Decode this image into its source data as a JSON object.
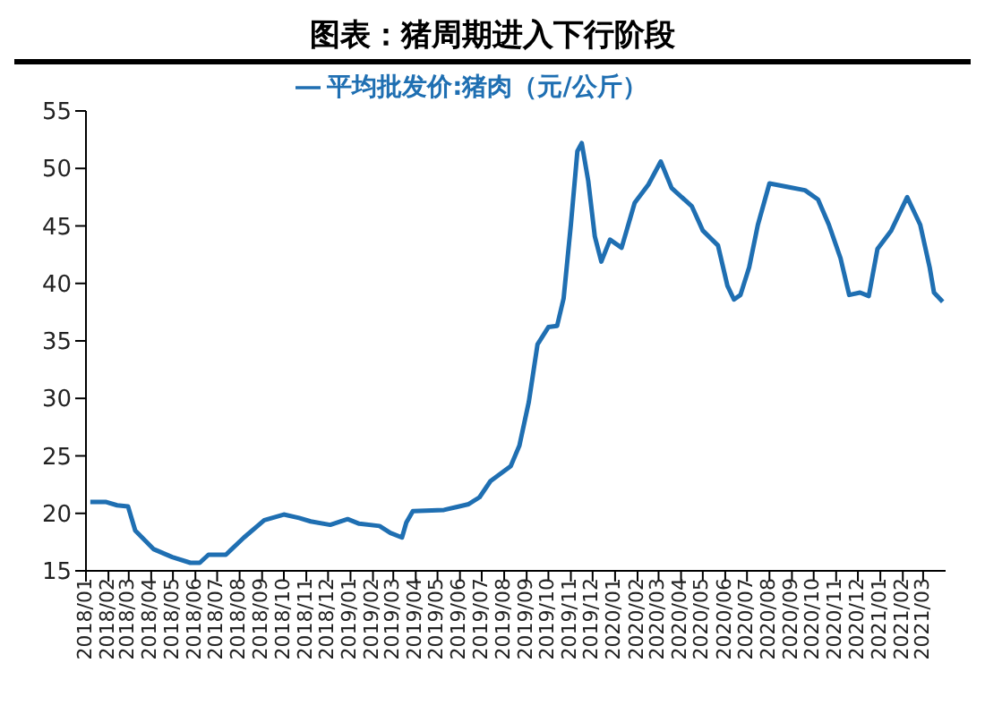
{
  "chart_data": {
    "type": "line",
    "title": "图表：猪周期进入下行阶段",
    "x": [
      "2018-01-07",
      "2018-01-28",
      "2018-02-13",
      "2018-02-28",
      "2018-03-10",
      "2018-04-04",
      "2018-04-30",
      "2018-05-25",
      "2018-06-07",
      "2018-06-19",
      "2018-07-13",
      "2018-08-07",
      "2018-09-04",
      "2018-10-01",
      "2018-10-22",
      "2018-11-07",
      "2018-12-04",
      "2018-12-28",
      "2019-01-13",
      "2019-02-10",
      "2019-02-25",
      "2019-03-13",
      "2019-03-19",
      "2019-03-28",
      "2019-05-10",
      "2019-06-13",
      "2019-06-28",
      "2019-07-13",
      "2019-08-10",
      "2019-08-22",
      "2019-09-04",
      "2019-09-16",
      "2019-10-01",
      "2019-10-13",
      "2019-10-22",
      "2019-11-01",
      "2019-11-10",
      "2019-11-16",
      "2019-11-25",
      "2019-12-04",
      "2019-12-13",
      "2019-12-25",
      "2020-01-10",
      "2020-01-28",
      "2020-02-16",
      "2020-03-04",
      "2020-03-19",
      "2020-04-16",
      "2020-05-01",
      "2020-05-22",
      "2020-06-04",
      "2020-06-13",
      "2020-06-22",
      "2020-07-04",
      "2020-07-16",
      "2020-08-01",
      "2020-08-25",
      "2020-09-19",
      "2020-10-07",
      "2020-10-22",
      "2020-11-07",
      "2020-11-19",
      "2020-12-04",
      "2020-12-16",
      "2020-12-28",
      "2021-01-16",
      "2021-02-07",
      "2021-02-25",
      "2021-03-10",
      "2021-03-16",
      "2021-03-28"
    ],
    "series": [
      {
        "name": "平均批发价:猪肉（元/公斤）",
        "color": "#1f6fb2",
        "values": [
          21.0,
          21.0,
          20.7,
          20.6,
          18.5,
          16.9,
          16.2,
          15.7,
          15.7,
          16.4,
          16.4,
          17.9,
          19.4,
          19.9,
          19.6,
          19.3,
          19.0,
          19.5,
          19.1,
          18.9,
          18.3,
          17.9,
          19.2,
          20.2,
          20.3,
          20.8,
          21.4,
          22.8,
          24.1,
          25.9,
          29.7,
          34.7,
          36.2,
          36.3,
          38.7,
          45.1,
          51.5,
          52.2,
          48.9,
          44.1,
          41.9,
          43.8,
          43.1,
          47.0,
          48.6,
          50.6,
          48.3,
          46.7,
          44.6,
          43.3,
          39.8,
          38.6,
          39.0,
          41.4,
          45.1,
          48.7,
          48.4,
          48.1,
          47.3,
          45.1,
          42.2,
          39.0,
          39.2,
          38.9,
          43.0,
          44.6,
          47.5,
          45.1,
          41.4,
          39.2,
          38.4
        ]
      }
    ],
    "xlim": [
      "2018-01-01",
      "2021-04-01"
    ],
    "xticks": [
      {
        "value": "2018-01",
        "label": "2018/01"
      },
      {
        "value": "2018-02",
        "label": "2018/02"
      },
      {
        "value": "2018-03",
        "label": "2018/03"
      },
      {
        "value": "2018-04",
        "label": "2018/04"
      },
      {
        "value": "2018-05",
        "label": "2018/05"
      },
      {
        "value": "2018-06",
        "label": "2018/06"
      },
      {
        "value": "2018-07",
        "label": "2018/07"
      },
      {
        "value": "2018-08",
        "label": "2018/08"
      },
      {
        "value": "2018-09",
        "label": "2018/09"
      },
      {
        "value": "2018-10",
        "label": "2018/10"
      },
      {
        "value": "2018-11",
        "label": "2018/11"
      },
      {
        "value": "2018-12",
        "label": "2018/12"
      },
      {
        "value": "2019-01",
        "label": "2019/01"
      },
      {
        "value": "2019-02",
        "label": "2019/02"
      },
      {
        "value": "2019-03",
        "label": "2019/03"
      },
      {
        "value": "2019-04",
        "label": "2019/04"
      },
      {
        "value": "2019-05",
        "label": "2019/05"
      },
      {
        "value": "2019-06",
        "label": "2019/06"
      },
      {
        "value": "2019-07",
        "label": "2019/07"
      },
      {
        "value": "2019-08",
        "label": "2019/08"
      },
      {
        "value": "2019-09",
        "label": "2019/09"
      },
      {
        "value": "2019-10",
        "label": "2019/10"
      },
      {
        "value": "2019-11",
        "label": "2019/11"
      },
      {
        "value": "2019-12",
        "label": "2019/12"
      },
      {
        "value": "2020-01",
        "label": "2020/01"
      },
      {
        "value": "2020-02",
        "label": "2020/02"
      },
      {
        "value": "2020-03",
        "label": "2020/03"
      },
      {
        "value": "2020-04",
        "label": "2020/04"
      },
      {
        "value": "2020-05",
        "label": "2020/05"
      },
      {
        "value": "2020-06",
        "label": "2020/06"
      },
      {
        "value": "2020-07",
        "label": "2020/07"
      },
      {
        "value": "2020-08",
        "label": "2020/08"
      },
      {
        "value": "2020-09",
        "label": "2020/09"
      },
      {
        "value": "2020-10",
        "label": "2020/10"
      },
      {
        "value": "2020-11",
        "label": "2020/11"
      },
      {
        "value": "2020-12",
        "label": "2020/12"
      },
      {
        "value": "2021-01",
        "label": "2021/01"
      },
      {
        "value": "2021-02",
        "label": "2021/02"
      },
      {
        "value": "2021-03",
        "label": "2021/03"
      }
    ],
    "ylim": [
      15,
      55
    ],
    "yticks": [
      15,
      20,
      25,
      30,
      35,
      40,
      45,
      50,
      55
    ],
    "grid": false,
    "legend": "top",
    "marker": "none",
    "line_style": "solid"
  }
}
